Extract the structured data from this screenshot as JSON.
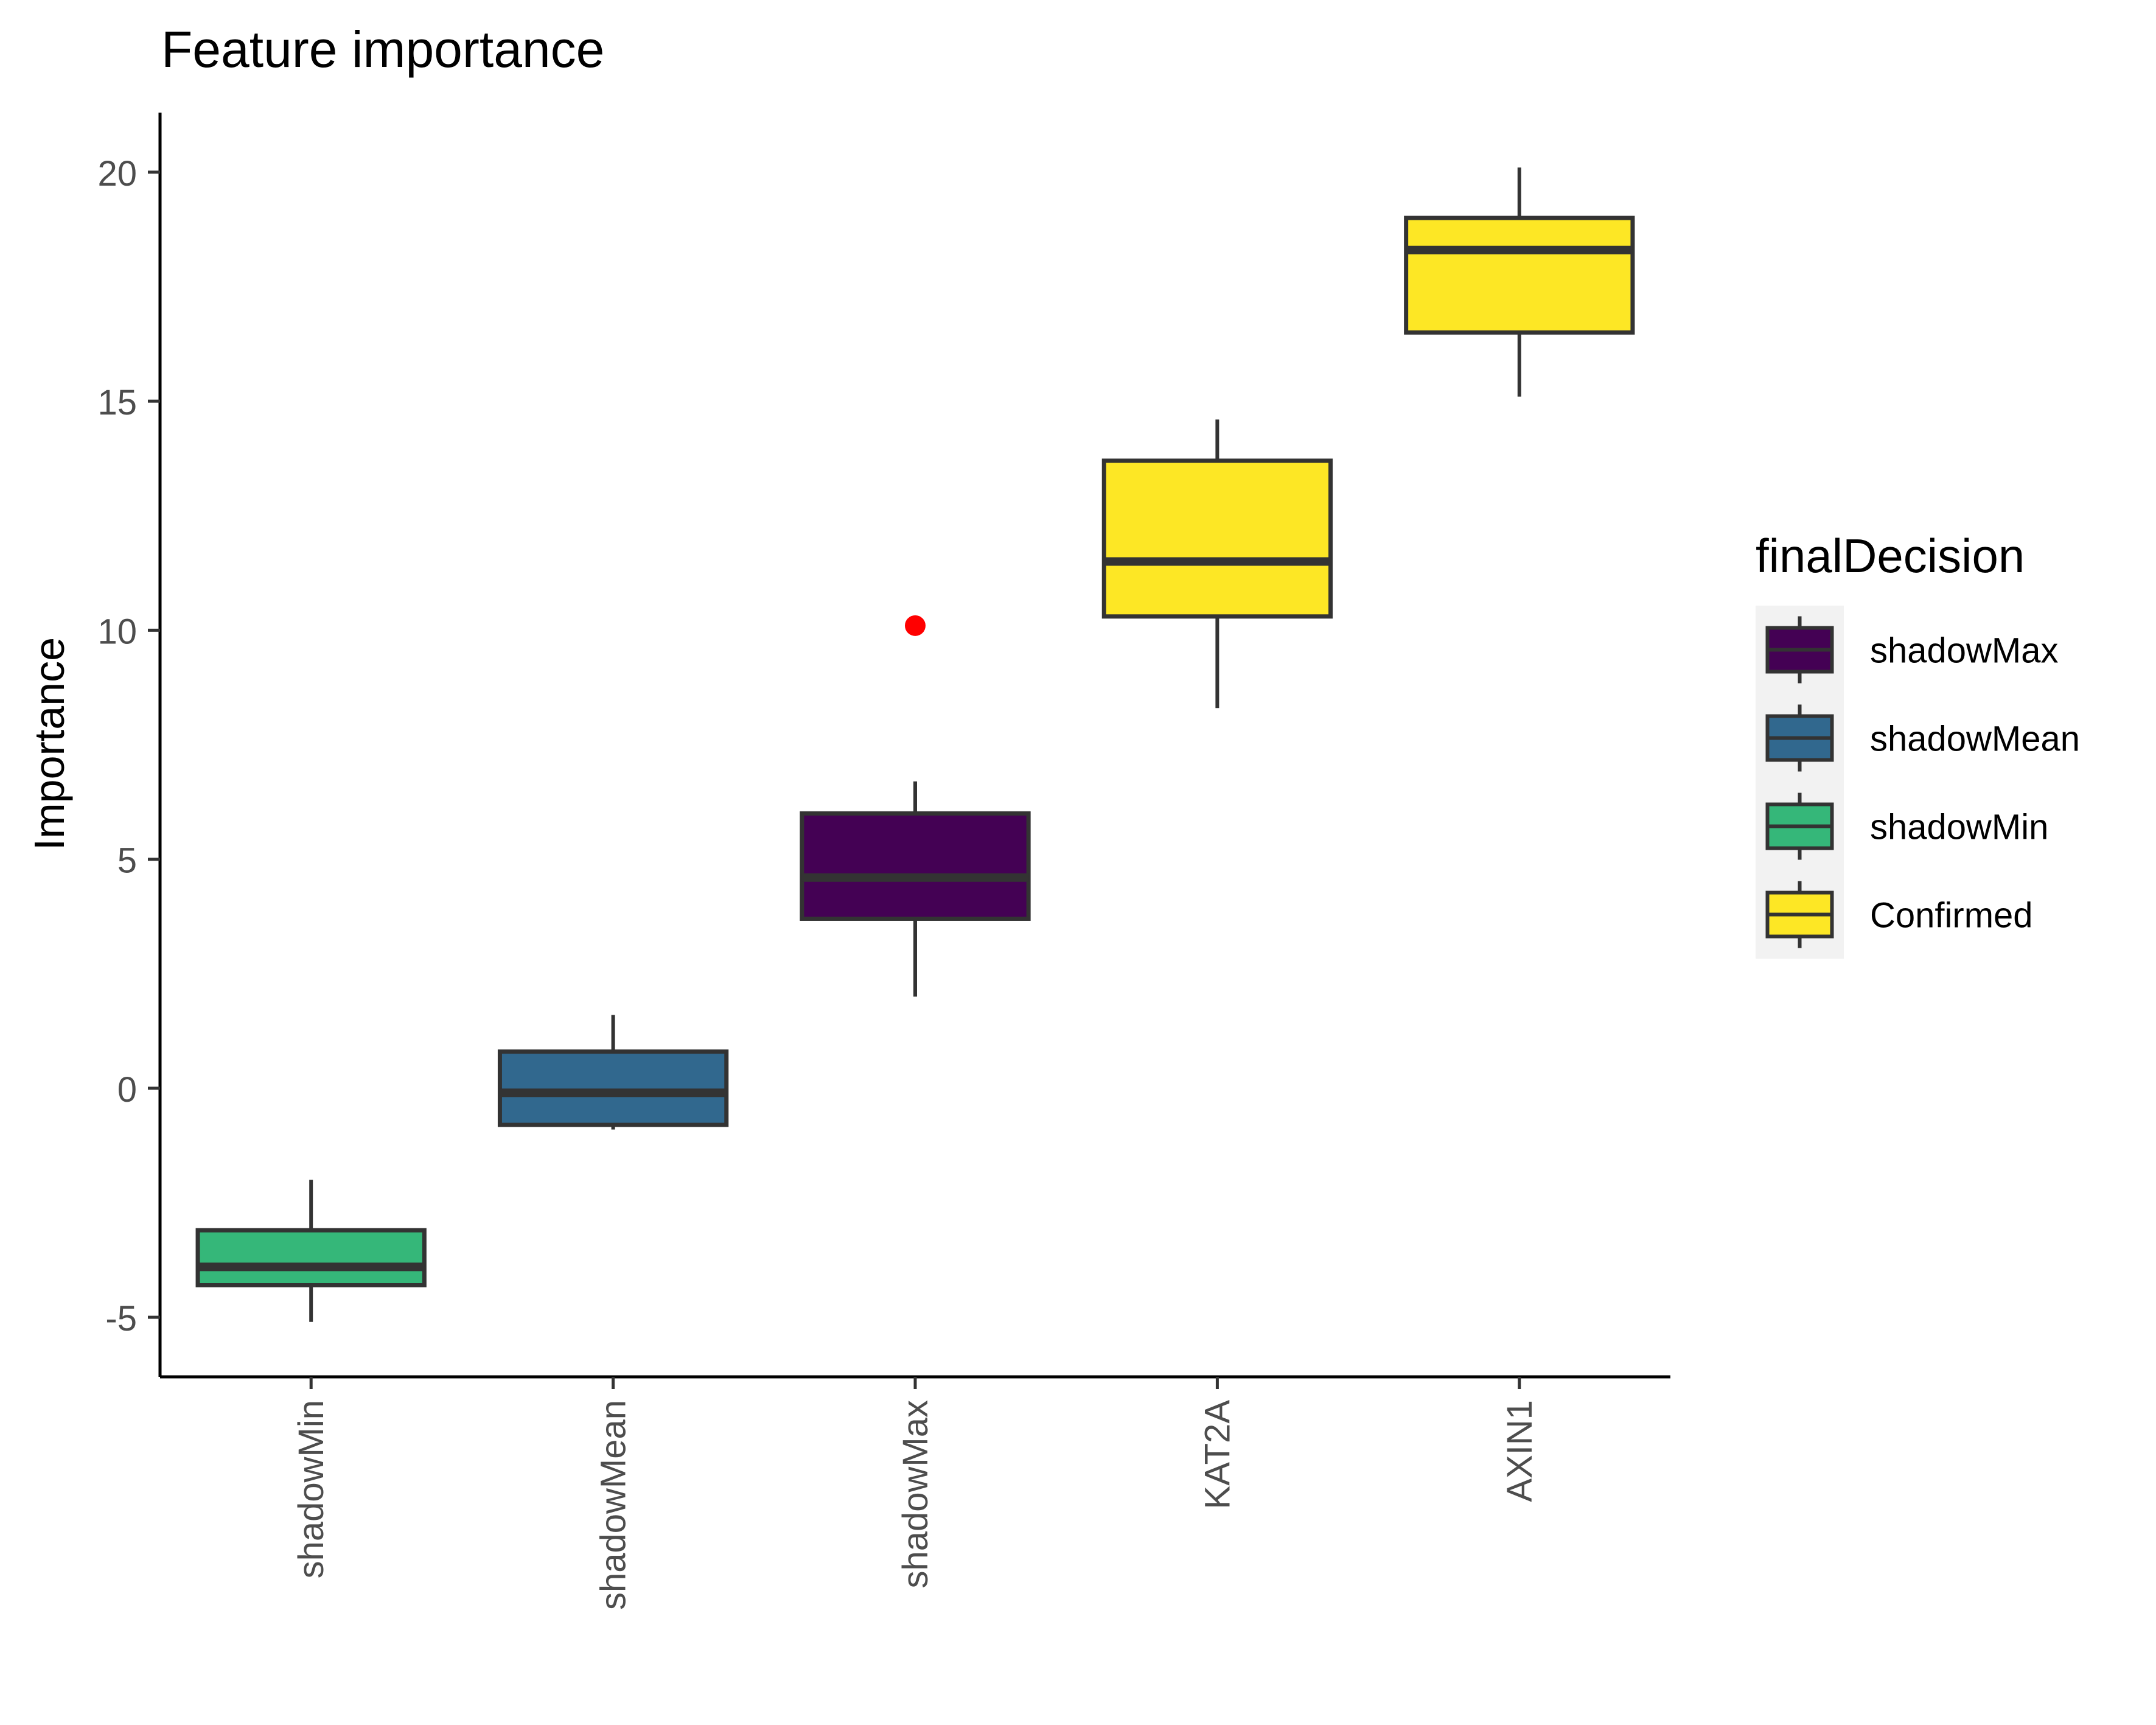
{
  "chart_data": {
    "type": "boxplot",
    "title": "Feature importance",
    "xlabel": "",
    "ylabel": "Importance",
    "ylim": [
      -6.3,
      21.3
    ],
    "yticks": [
      -5,
      0,
      5,
      10,
      15,
      20
    ],
    "ytick_labels": [
      "-5",
      "0",
      "5",
      "10",
      "15",
      "20"
    ],
    "grid": false,
    "categories": [
      "shadowMin",
      "shadowMean",
      "shadowMax",
      "KAT2A",
      "AXIN1"
    ],
    "boxes": [
      {
        "category": "shadowMin",
        "group": "shadowMin",
        "whisker_low": -5.1,
        "q1": -4.3,
        "median": -3.9,
        "q3": -3.1,
        "whisker_high": -2.0,
        "outliers": []
      },
      {
        "category": "shadowMean",
        "group": "shadowMean",
        "whisker_low": -0.9,
        "q1": -0.8,
        "median": -0.1,
        "q3": 0.8,
        "whisker_high": 1.6,
        "outliers": []
      },
      {
        "category": "shadowMax",
        "group": "shadowMax",
        "whisker_low": 2.0,
        "q1": 3.7,
        "median": 4.6,
        "q3": 6.0,
        "whisker_high": 6.7,
        "outliers": [
          10.1
        ]
      },
      {
        "category": "KAT2A",
        "group": "Confirmed",
        "whisker_low": 8.3,
        "q1": 10.3,
        "median": 11.5,
        "q3": 13.7,
        "whisker_high": 14.6,
        "outliers": []
      },
      {
        "category": "AXIN1",
        "group": "Confirmed",
        "whisker_low": 15.1,
        "q1": 16.5,
        "median": 18.3,
        "q3": 19.0,
        "whisker_high": 20.1,
        "outliers": []
      }
    ],
    "legend": {
      "title": "finalDecision",
      "position": "right",
      "entries": [
        {
          "label": "shadowMax",
          "color": "#440154"
        },
        {
          "label": "shadowMean",
          "color": "#31688E"
        },
        {
          "label": "shadowMin",
          "color": "#35B779"
        },
        {
          "label": "Confirmed",
          "color": "#FDE725"
        }
      ]
    },
    "outlier_color": "#FF0000",
    "box_line_color": "#333333",
    "x_tick_label_rotation": "vertical"
  }
}
